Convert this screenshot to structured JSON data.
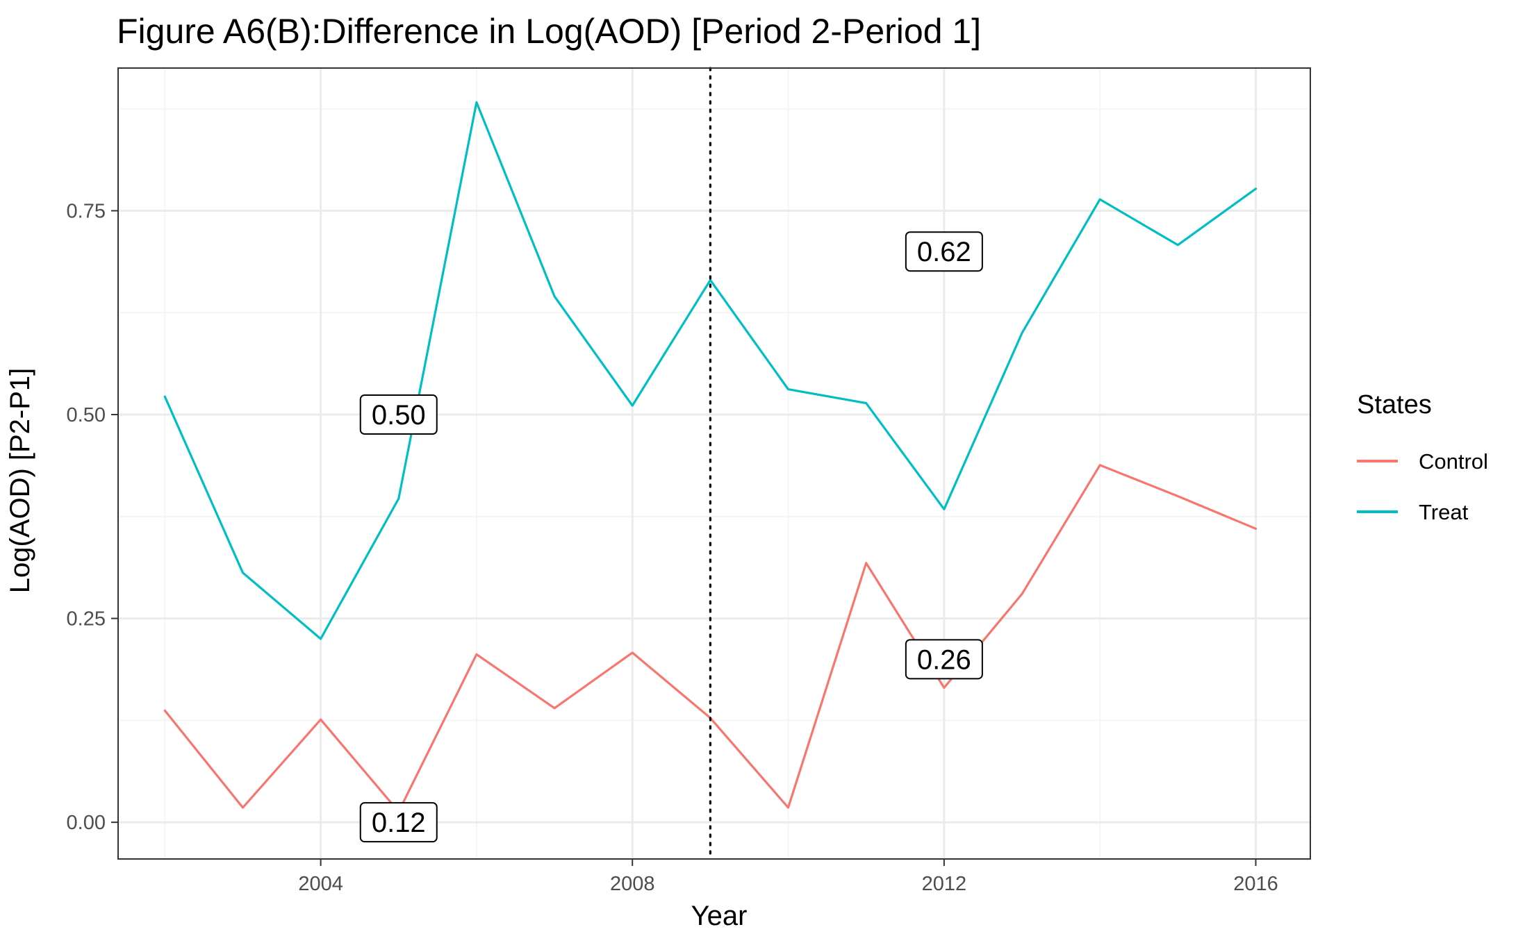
{
  "chart_data": {
    "type": "line",
    "title": "Figure A6(B):Difference in Log(AOD) [Period 2-Period 1]",
    "xlabel": "Year",
    "ylabel": "Log(AOD) [P2-P1]",
    "xlim": [
      2001.4,
      2016.7
    ],
    "ylim": [
      -0.045,
      0.925
    ],
    "x_ticks": [
      2004,
      2008,
      2012,
      2016
    ],
    "x_tick_labels": [
      "2004",
      "2008",
      "2012",
      "2016"
    ],
    "y_ticks": [
      0.0,
      0.25,
      0.5,
      0.75
    ],
    "y_tick_labels": [
      "0.00",
      "0.25",
      "0.50",
      "0.75"
    ],
    "x_minor_ticks": [
      2002,
      2006,
      2010,
      2014
    ],
    "y_minor_ticks": [
      0.125,
      0.375,
      0.625,
      0.875
    ],
    "grid": true,
    "x": [
      2002,
      2003,
      2004,
      2005,
      2006,
      2007,
      2008,
      2009,
      2010,
      2011,
      2012,
      2013,
      2014,
      2015,
      2016
    ],
    "series": [
      {
        "name": "Control",
        "color": "#F8766D",
        "values": [
          0.137,
          0.018,
          0.126,
          0.013,
          0.206,
          0.14,
          0.208,
          0.128,
          0.018,
          0.318,
          0.165,
          0.28,
          0.438,
          0.4,
          0.36
        ]
      },
      {
        "name": "Treat",
        "color": "#00BFC4",
        "values": [
          0.522,
          0.306,
          0.225,
          0.397,
          0.883,
          0.645,
          0.511,
          0.665,
          0.531,
          0.514,
          0.384,
          0.6,
          0.764,
          0.708,
          0.777
        ]
      }
    ],
    "reference_line": {
      "x": 2009,
      "style": "dotted",
      "color": "#000000"
    },
    "annotations": [
      {
        "label": "0.50",
        "x": 2005,
        "y": 0.5
      },
      {
        "label": "0.62",
        "x": 2012,
        "y": 0.7
      },
      {
        "label": "0.26",
        "x": 2012,
        "y": 0.2
      },
      {
        "label": "0.12",
        "x": 2005,
        "y": 0.0
      }
    ],
    "legend": {
      "title": "States",
      "placement": "right",
      "entries": [
        "Control",
        "Treat"
      ]
    },
    "colors": {
      "control": "#F8766D",
      "treat": "#00BFC4",
      "grid_major": "#EBEBEB",
      "grid_minor": "#F5F5F5",
      "panel_border": "#333333",
      "tick_text": "#4D4D4D"
    }
  }
}
